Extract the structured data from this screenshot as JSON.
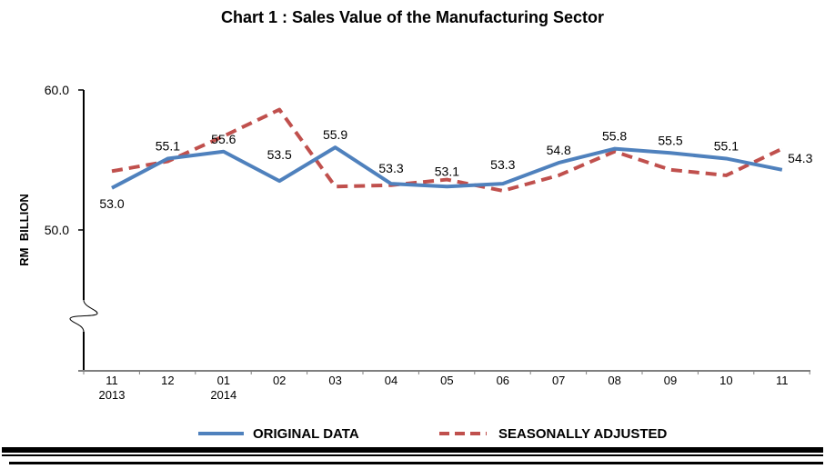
{
  "chart_data": {
    "type": "line",
    "title": "Chart 1 : Sales Value of the Manufacturing Sector",
    "xlabel": "",
    "ylabel": "RM  BILLION",
    "ylim": [
      40.0,
      60.0
    ],
    "yticks": [
      "60.0",
      "50.0"
    ],
    "ytick_values": [
      60.0,
      50.0
    ],
    "axis_break": true,
    "grid": false,
    "legend_position": "bottom-center",
    "categories": [
      "11",
      "12",
      "01",
      "02",
      "03",
      "04",
      "05",
      "06",
      "07",
      "08",
      "09",
      "10",
      "11"
    ],
    "year_labels": [
      {
        "index": 0,
        "label": "2013"
      },
      {
        "index": 2,
        "label": "2014"
      }
    ],
    "series": [
      {
        "name": "ORIGINAL DATA",
        "style": "solid",
        "color": "#4f81bd",
        "values": [
          53.0,
          55.1,
          55.6,
          53.5,
          55.9,
          53.3,
          53.1,
          53.3,
          54.8,
          55.8,
          55.5,
          55.1,
          54.3
        ],
        "data_labels": [
          "53.0",
          "55.1",
          "55.6",
          "53.5",
          "55.9",
          "53.3",
          "53.1",
          "53.3",
          "54.8",
          "55.8",
          "55.5",
          "55.1",
          "54.3"
        ]
      },
      {
        "name": "SEASONALLY ADJUSTED",
        "style": "dashed",
        "color": "#c0504d",
        "values": [
          54.2,
          54.9,
          56.7,
          58.6,
          53.1,
          53.2,
          53.6,
          52.8,
          53.9,
          55.6,
          54.3,
          53.9,
          55.8
        ]
      }
    ]
  }
}
